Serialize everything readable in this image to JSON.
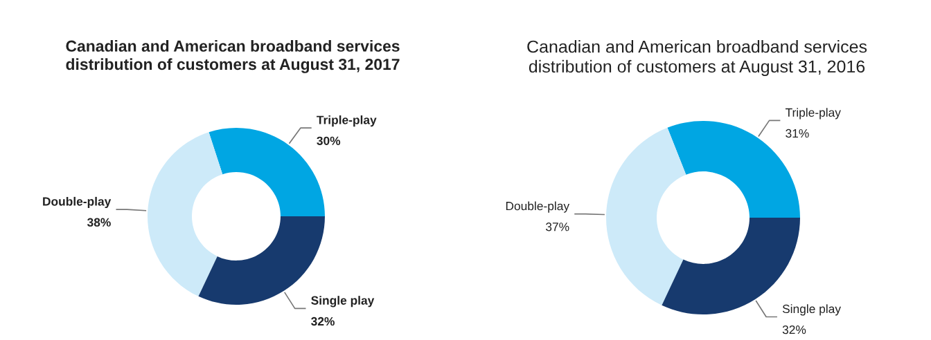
{
  "chart_data": [
    {
      "type": "donut",
      "title": "Canadian and American broadband services\ndistribution of customers at August 31, 2017",
      "categories": [
        "Triple-play",
        "Double-play",
        "Single play"
      ],
      "values": [
        30,
        38,
        32
      ],
      "colors": [
        "#00a6e3",
        "#cdeaf9",
        "#173a6e"
      ],
      "value_labels": [
        "30%",
        "38%",
        "32%"
      ]
    },
    {
      "type": "donut",
      "title": "Canadian and American broadband services\ndistribution of customers at August 31, 2016",
      "categories": [
        "Triple-play",
        "Double-play",
        "Single play"
      ],
      "values": [
        31,
        37,
        32
      ],
      "colors": [
        "#00a6e3",
        "#cdeaf9",
        "#173a6e"
      ],
      "value_labels": [
        "31%",
        "37%",
        "32%"
      ]
    }
  ]
}
